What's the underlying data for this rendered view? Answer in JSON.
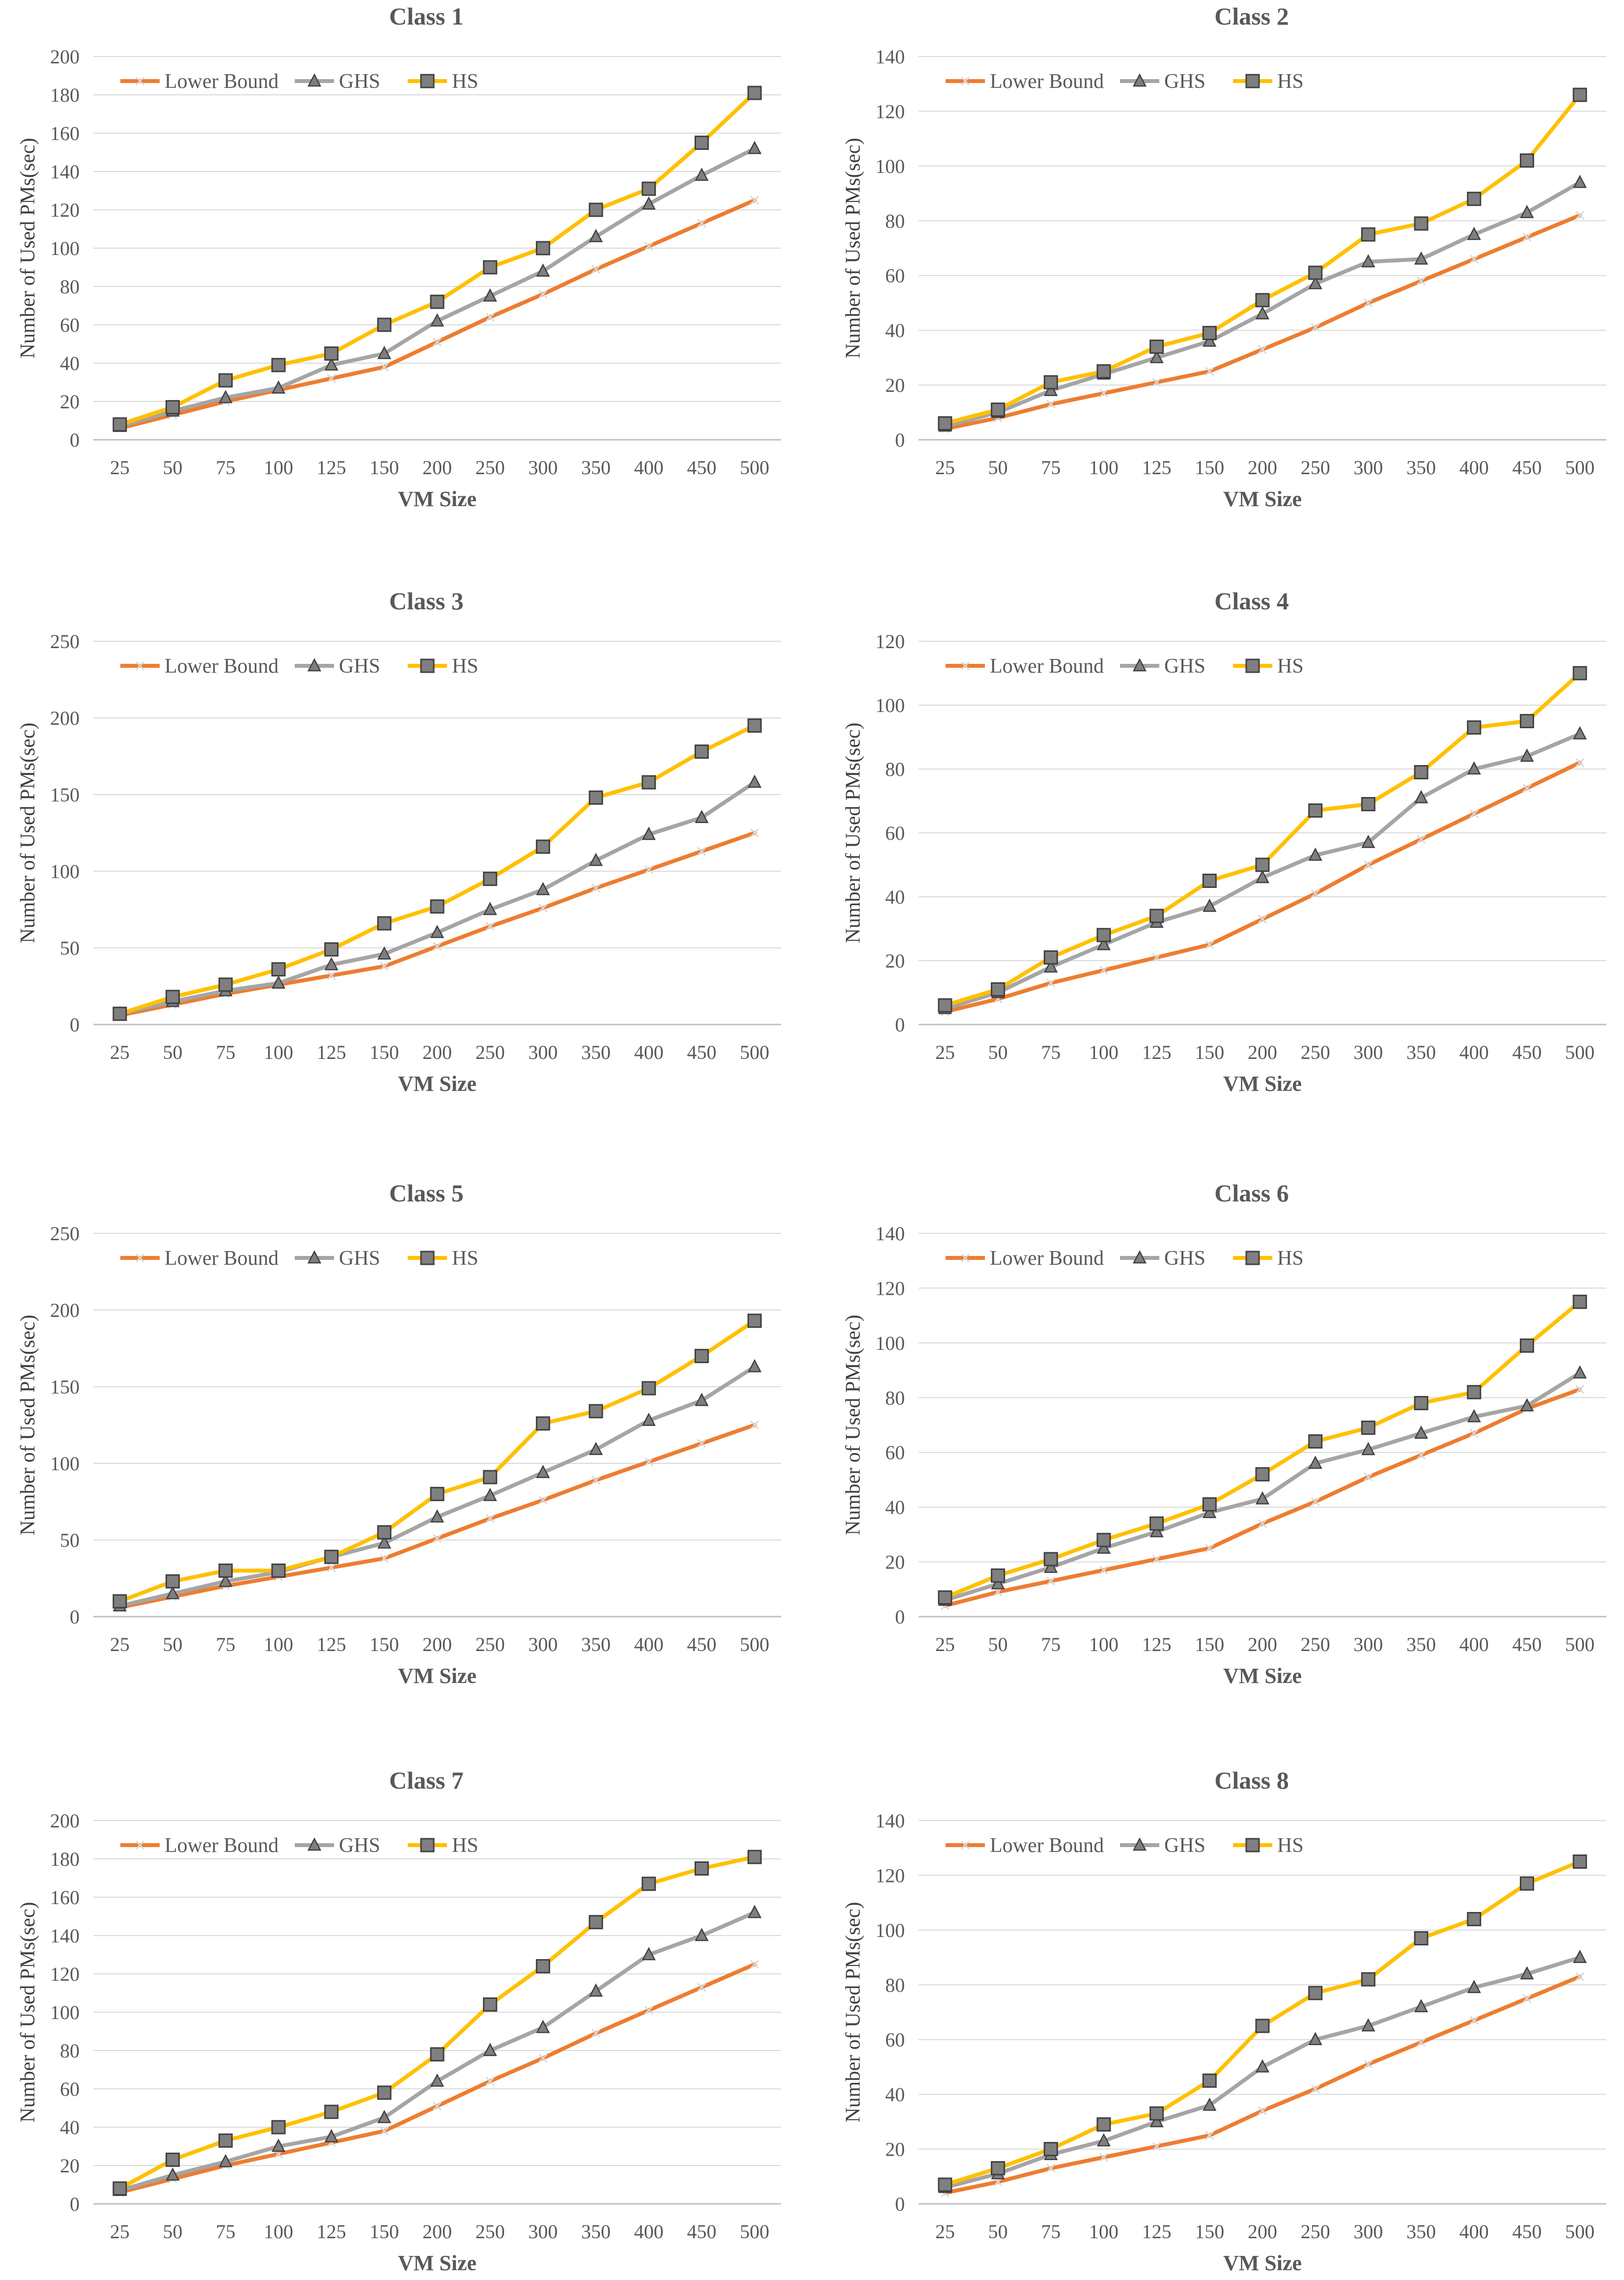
{
  "colors": {
    "lower_bound": "#ED7D31",
    "ghs": "#A5A5A5",
    "hs": "#FFC000",
    "marker_fill": "#7F7F7F",
    "text": "#595959",
    "title": "#595959",
    "grid": "#D9D9D9",
    "axis": "#BFBFBF"
  },
  "chart_data": [
    {
      "type": "line",
      "title": "Class 1",
      "xlabel": "VM Size",
      "ylabel": "Number of Used PMs(sec)",
      "categories": [
        "25",
        "50",
        "75",
        "100",
        "125",
        "150",
        "200",
        "250",
        "300",
        "350",
        "400",
        "450",
        "500"
      ],
      "ylim": [
        0,
        200
      ],
      "yticks": [
        0,
        20,
        40,
        60,
        80,
        100,
        120,
        140,
        160,
        180,
        200
      ],
      "grid": true,
      "legend": "top-left",
      "series": [
        {
          "name": "Lower Bound",
          "values": [
            6,
            13,
            20,
            26,
            32,
            38,
            51,
            64,
            76,
            89,
            101,
            113,
            125
          ]
        },
        {
          "name": "GHS",
          "values": [
            7,
            15,
            22,
            27,
            39,
            45,
            62,
            75,
            88,
            106,
            123,
            138,
            152
          ]
        },
        {
          "name": "HS",
          "values": [
            8,
            17,
            31,
            39,
            45,
            60,
            72,
            90,
            100,
            120,
            131,
            155,
            181
          ]
        }
      ]
    },
    {
      "type": "line",
      "title": "Class 2",
      "xlabel": "VM Size",
      "ylabel": "Number of Used PMs(sec)",
      "categories": [
        "25",
        "50",
        "75",
        "100",
        "125",
        "150",
        "200",
        "250",
        "300",
        "350",
        "400",
        "450",
        "500"
      ],
      "ylim": [
        0,
        140
      ],
      "yticks": [
        0,
        20,
        40,
        60,
        80,
        100,
        120,
        140
      ],
      "grid": true,
      "legend": "top-left",
      "series": [
        {
          "name": "Lower Bound",
          "values": [
            4,
            8,
            13,
            17,
            21,
            25,
            33,
            41,
            50,
            58,
            66,
            74,
            82
          ]
        },
        {
          "name": "GHS",
          "values": [
            5,
            10,
            18,
            24,
            30,
            36,
            46,
            57,
            65,
            66,
            75,
            83,
            94
          ]
        },
        {
          "name": "HS",
          "values": [
            6,
            11,
            21,
            25,
            34,
            39,
            51,
            61,
            75,
            79,
            88,
            102,
            126
          ]
        }
      ]
    },
    {
      "type": "line",
      "title": "Class 3",
      "xlabel": "VM Size",
      "ylabel": "Number of Used PMs(sec)",
      "categories": [
        "25",
        "50",
        "75",
        "100",
        "125",
        "150",
        "200",
        "250",
        "300",
        "350",
        "400",
        "450",
        "500"
      ],
      "ylim": [
        0,
        250
      ],
      "yticks": [
        0,
        50,
        100,
        150,
        200,
        250
      ],
      "grid": true,
      "legend": "top-left",
      "series": [
        {
          "name": "Lower Bound",
          "values": [
            6,
            13,
            20,
            26,
            32,
            38,
            51,
            64,
            76,
            89,
            101,
            113,
            125
          ]
        },
        {
          "name": "GHS",
          "values": [
            7,
            15,
            22,
            27,
            39,
            46,
            60,
            75,
            88,
            107,
            124,
            135,
            158
          ]
        },
        {
          "name": "HS",
          "values": [
            7,
            18,
            26,
            36,
            49,
            66,
            77,
            95,
            116,
            148,
            158,
            178,
            195
          ]
        }
      ]
    },
    {
      "type": "line",
      "title": "Class 4",
      "xlabel": "VM Size",
      "ylabel": "Number of Used PMs(sec)",
      "categories": [
        "25",
        "50",
        "75",
        "100",
        "125",
        "150",
        "200",
        "250",
        "300",
        "350",
        "400",
        "450",
        "500"
      ],
      "ylim": [
        0,
        120
      ],
      "yticks": [
        0,
        20,
        40,
        60,
        80,
        100,
        120
      ],
      "grid": true,
      "legend": "top-left",
      "series": [
        {
          "name": "Lower Bound",
          "values": [
            4,
            8,
            13,
            17,
            21,
            25,
            33,
            41,
            50,
            58,
            66,
            74,
            82
          ]
        },
        {
          "name": "GHS",
          "values": [
            5,
            10,
            18,
            25,
            32,
            37,
            46,
            53,
            57,
            71,
            80,
            84,
            91
          ]
        },
        {
          "name": "HS",
          "values": [
            6,
            11,
            21,
            28,
            34,
            45,
            50,
            67,
            69,
            79,
            93,
            95,
            110
          ]
        }
      ]
    },
    {
      "type": "line",
      "title": "Class 5",
      "xlabel": "VM Size",
      "ylabel": "Number of Used PMs(sec)",
      "categories": [
        "25",
        "50",
        "75",
        "100",
        "125",
        "150",
        "200",
        "250",
        "300",
        "350",
        "400",
        "450",
        "500"
      ],
      "ylim": [
        0,
        250
      ],
      "yticks": [
        0,
        50,
        100,
        150,
        200,
        250
      ],
      "grid": true,
      "legend": "top-left",
      "series": [
        {
          "name": "Lower Bound",
          "values": [
            6,
            13,
            20,
            26,
            32,
            38,
            51,
            64,
            76,
            89,
            101,
            113,
            125
          ]
        },
        {
          "name": "GHS",
          "values": [
            7,
            15,
            23,
            29,
            39,
            48,
            65,
            79,
            94,
            109,
            128,
            141,
            163
          ]
        },
        {
          "name": "HS",
          "values": [
            10,
            23,
            30,
            30,
            39,
            55,
            80,
            91,
            126,
            134,
            149,
            170,
            193
          ]
        }
      ]
    },
    {
      "type": "line",
      "title": "Class 6",
      "xlabel": "VM Size",
      "ylabel": "Number of Used PMs(sec)",
      "categories": [
        "25",
        "50",
        "75",
        "100",
        "125",
        "150",
        "200",
        "250",
        "300",
        "350",
        "400",
        "450",
        "500"
      ],
      "ylim": [
        0,
        140
      ],
      "yticks": [
        0,
        20,
        40,
        60,
        80,
        100,
        120,
        140
      ],
      "grid": true,
      "legend": "top-left",
      "series": [
        {
          "name": "Lower Bound",
          "values": [
            4,
            9,
            13,
            17,
            21,
            25,
            34,
            42,
            51,
            59,
            67,
            76,
            83
          ]
        },
        {
          "name": "GHS",
          "values": [
            6,
            12,
            18,
            25,
            31,
            38,
            43,
            56,
            61,
            67,
            73,
            77,
            89
          ]
        },
        {
          "name": "HS",
          "values": [
            7,
            15,
            21,
            28,
            34,
            41,
            52,
            64,
            69,
            78,
            82,
            99,
            115
          ]
        }
      ]
    },
    {
      "type": "line",
      "title": "Class 7",
      "xlabel": "VM Size",
      "ylabel": "Number of Used PMs(sec)",
      "categories": [
        "25",
        "50",
        "75",
        "100",
        "125",
        "150",
        "200",
        "250",
        "300",
        "350",
        "400",
        "450",
        "500"
      ],
      "ylim": [
        0,
        200
      ],
      "yticks": [
        0,
        20,
        40,
        60,
        80,
        100,
        120,
        140,
        160,
        180,
        200
      ],
      "grid": true,
      "legend": "top-left",
      "series": [
        {
          "name": "Lower Bound",
          "values": [
            6,
            13,
            20,
            26,
            32,
            38,
            51,
            64,
            76,
            89,
            101,
            113,
            125
          ]
        },
        {
          "name": "GHS",
          "values": [
            7,
            15,
            22,
            30,
            35,
            45,
            64,
            80,
            92,
            111,
            130,
            140,
            152
          ]
        },
        {
          "name": "HS",
          "values": [
            8,
            23,
            33,
            40,
            48,
            58,
            78,
            104,
            124,
            147,
            167,
            175,
            181
          ]
        }
      ]
    },
    {
      "type": "line",
      "title": "Class 8",
      "xlabel": "VM Size",
      "ylabel": "Number of Used PMs(sec)",
      "categories": [
        "25",
        "50",
        "75",
        "100",
        "125",
        "150",
        "200",
        "250",
        "300",
        "350",
        "400",
        "450",
        "500"
      ],
      "ylim": [
        0,
        140
      ],
      "yticks": [
        0,
        20,
        40,
        60,
        80,
        100,
        120,
        140
      ],
      "grid": true,
      "legend": "top-left",
      "series": [
        {
          "name": "Lower Bound",
          "values": [
            4,
            8,
            13,
            17,
            21,
            25,
            34,
            42,
            51,
            59,
            67,
            75,
            83
          ]
        },
        {
          "name": "GHS",
          "values": [
            6,
            11,
            18,
            23,
            30,
            36,
            50,
            60,
            65,
            72,
            79,
            84,
            90
          ]
        },
        {
          "name": "HS",
          "values": [
            7,
            13,
            20,
            29,
            33,
            45,
            65,
            77,
            82,
            97,
            104,
            117,
            125
          ]
        }
      ]
    }
  ]
}
